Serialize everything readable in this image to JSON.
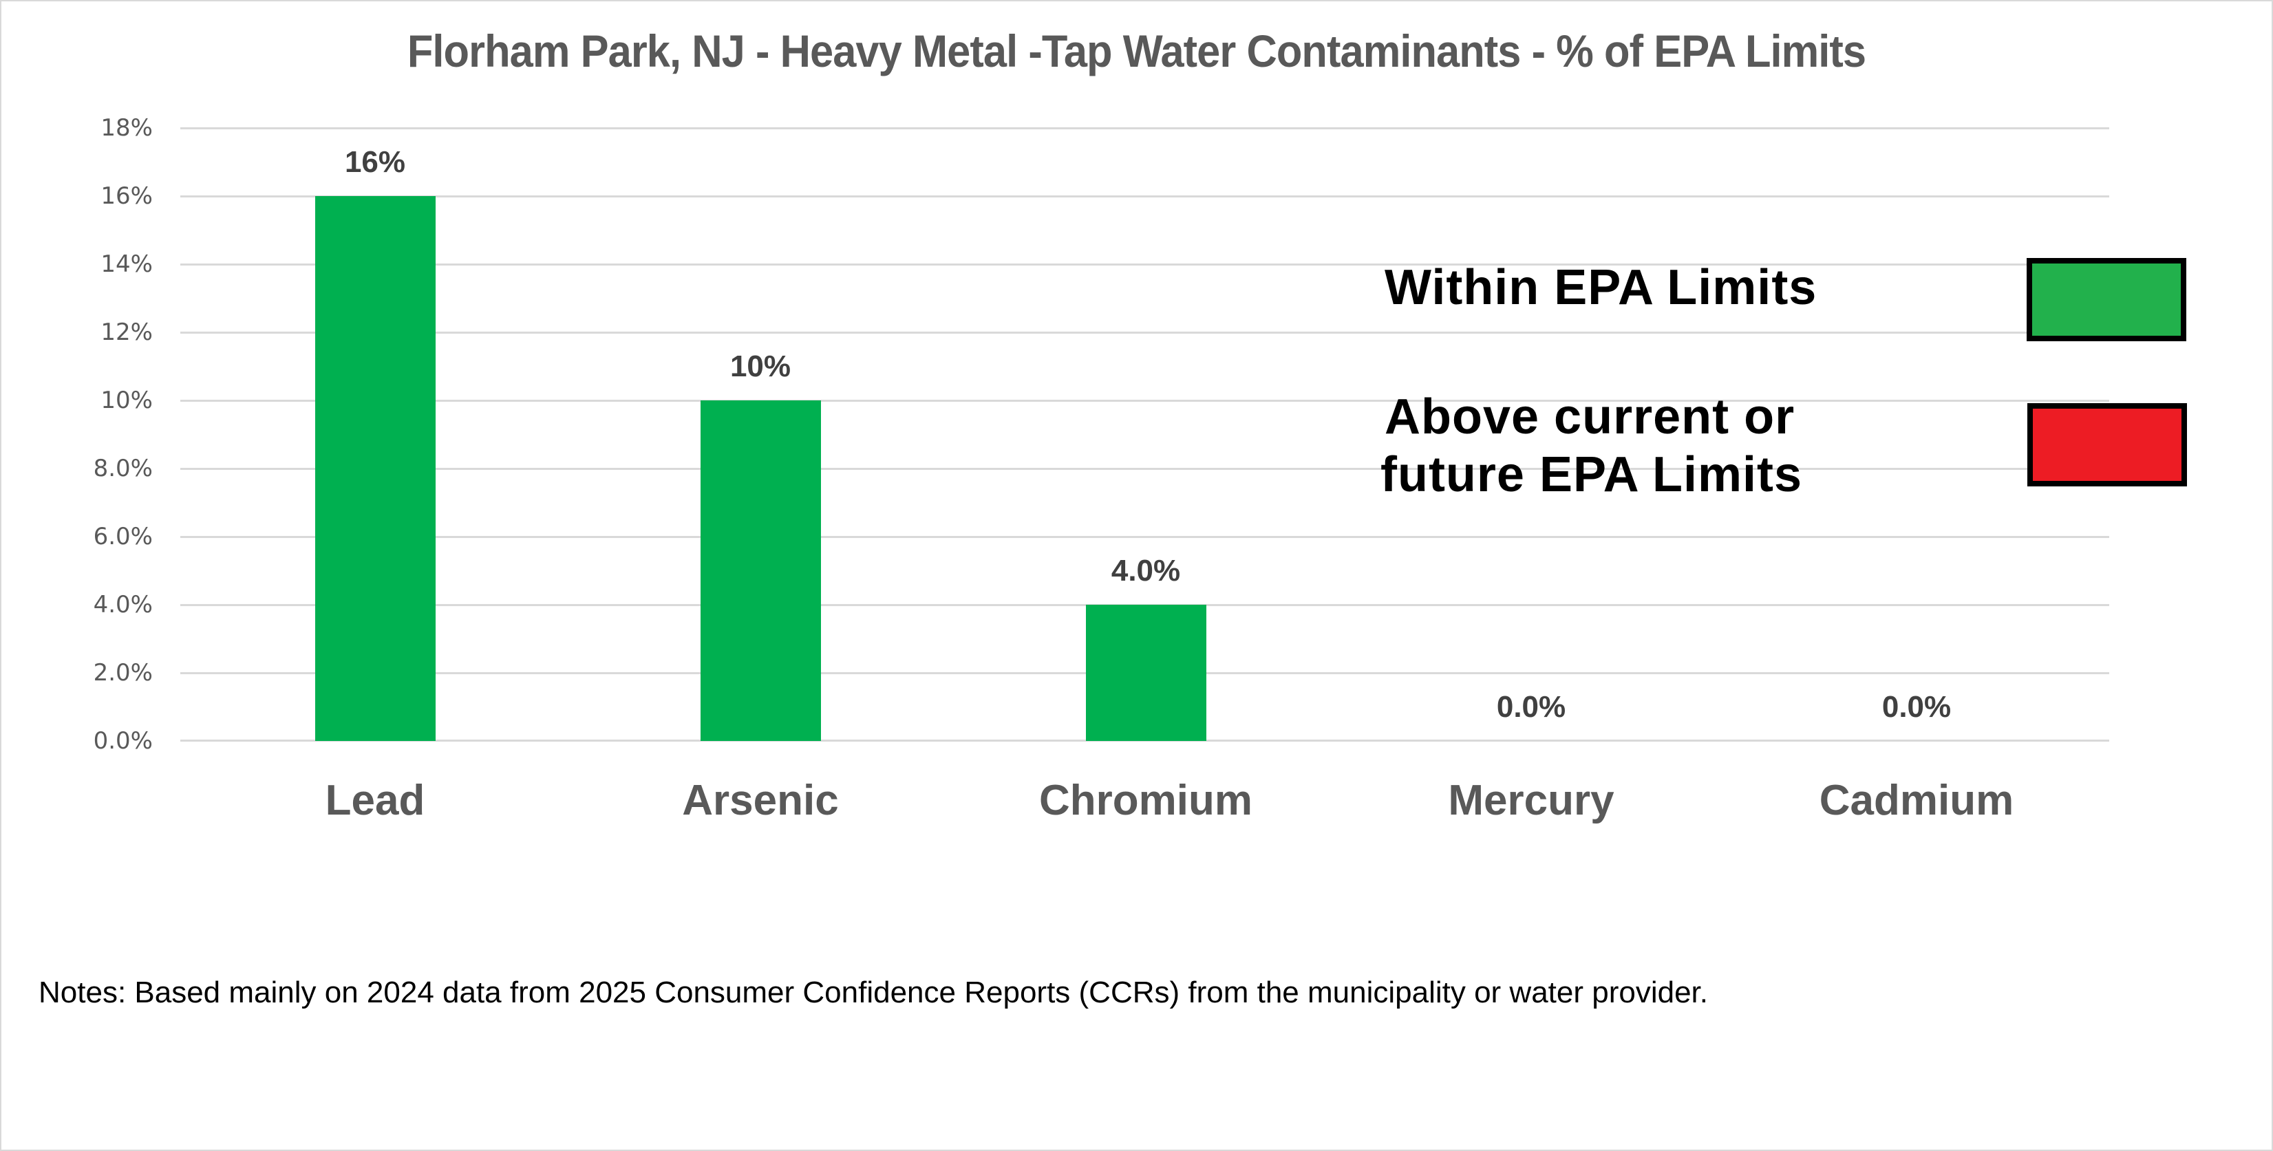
{
  "title": "Florham Park, NJ - Heavy Metal -Tap Water Contaminants - % of EPA Limits",
  "notes": "Notes: Based mainly on 2024 data from 2025 Consumer Confidence Reports (CCRs) from the municipality or water provider.",
  "y_axis": {
    "ticks": [
      "18%",
      "16%",
      "14%",
      "12%",
      "10%",
      "8.0%",
      "6.0%",
      "4.0%",
      "2.0%",
      "0.0%"
    ]
  },
  "bars": [
    {
      "category": "Lead",
      "value": 16,
      "label": "16%",
      "color": "#00b050"
    },
    {
      "category": "Arsenic",
      "value": 10,
      "label": "10%",
      "color": "#00b050"
    },
    {
      "category": "Chromium",
      "value": 4,
      "label": "4.0%",
      "color": "#00b050"
    },
    {
      "category": "Mercury",
      "value": 0,
      "label": "0.0%",
      "color": "#00b050"
    },
    {
      "category": "Cadmium",
      "value": 0,
      "label": "0.0%",
      "color": "#00b050"
    }
  ],
  "legend": {
    "items": [
      {
        "label": "Within  EPA Limits",
        "color": "#22b14c"
      },
      {
        "label_line1": "Above current or",
        "label_line2": "future  EPA Limits",
        "color": "#ed1c24"
      }
    ]
  },
  "chart_data": {
    "type": "bar",
    "title": "Florham Park, NJ - Heavy Metal -Tap Water Contaminants - % of EPA Limits",
    "categories": [
      "Lead",
      "Arsenic",
      "Chromium",
      "Mercury",
      "Cadmium"
    ],
    "values": [
      16,
      10,
      4,
      0,
      0
    ],
    "data_labels": [
      "16%",
      "10%",
      "4.0%",
      "0.0%",
      "0.0%"
    ],
    "unit": "% of EPA limit",
    "xlabel": "",
    "ylabel": "",
    "ylim": [
      0,
      18
    ],
    "yticks": [
      0,
      2,
      4,
      6,
      8,
      10,
      12,
      14,
      16,
      18
    ],
    "grid": true,
    "bar_color": "#00b050",
    "legend": [
      {
        "label": "Within EPA Limits",
        "color": "#22b14c"
      },
      {
        "label": "Above current or future EPA Limits",
        "color": "#ed1c24"
      }
    ],
    "legend_position": "right, inside plot",
    "notes": "Notes: Based mainly on 2024 data from 2025 Consumer Confidence Reports (CCRs) from the municipality or water provider."
  }
}
